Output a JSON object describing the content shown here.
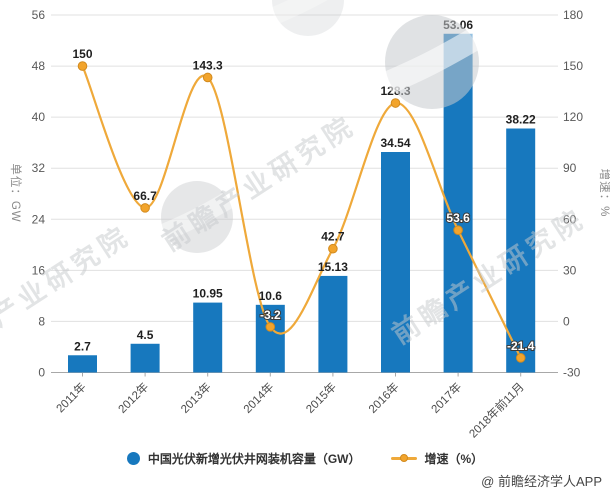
{
  "chart_data": {
    "type": "bar+line",
    "categories": [
      "2011年",
      "2012年",
      "2013年",
      "2014年",
      "2015年",
      "2016年",
      "2017年",
      "2018年前11月"
    ],
    "series": [
      {
        "name": "中国光伏新增光伏井网装机容量（GW）",
        "type": "bar",
        "axis": "left",
        "color": "#1778be",
        "values": [
          2.7,
          4.5,
          10.95,
          10.6,
          15.13,
          34.54,
          53.06,
          38.22
        ]
      },
      {
        "name": "增速（%）",
        "type": "line",
        "axis": "right",
        "color": "#efa93a",
        "marker_fill": "#f2a42c",
        "marker_edge": "#d28a1e",
        "values": [
          150,
          66.7,
          143.3,
          -3.2,
          42.7,
          128.3,
          53.6,
          -21.4
        ]
      }
    ],
    "left_axis": {
      "title": "单位：GW",
      "min": 0,
      "max": 56,
      "ticks": [
        0,
        8,
        16,
        24,
        32,
        40,
        48,
        56
      ]
    },
    "right_axis": {
      "title": "增速：%",
      "min": -30,
      "max": 180,
      "ticks": [
        -30,
        0,
        30,
        60,
        90,
        120,
        150,
        180
      ]
    },
    "grid": true,
    "legend_position": "bottom"
  },
  "legend": {
    "items": [
      {
        "label": "中国光伏新增光伏井网装机容量（GW）",
        "marker": "circle",
        "color": "#1778be"
      },
      {
        "label": "增速（%）",
        "marker": "line-dot",
        "color": "#efa93a"
      }
    ]
  },
  "watermark": {
    "brand_text": "前瞻产业研究院"
  },
  "credit": "@ 前瞻经济学人APP",
  "colors": {
    "bar": "#1778be",
    "line": "#efa93a",
    "grid": "#e0e0e0",
    "axis": "#a8a8a8",
    "tick_text": "#595959",
    "label_text": "#1f1f1f",
    "inverted_label": "#ffffff",
    "watermark": "#c7cacd"
  }
}
